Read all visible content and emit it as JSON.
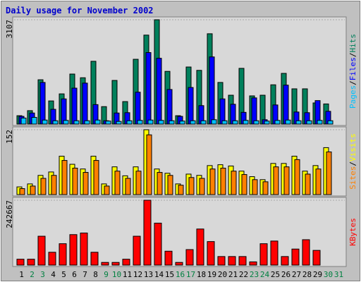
{
  "chart_data": [
    {
      "type": "bar",
      "title": "Daily usage for November 2002",
      "series": [
        {
          "name": "Hits",
          "color": "#00805c",
          "values": [
            250,
            400,
            1320,
            690,
            900,
            1490,
            1380,
            1870,
            520,
            1300,
            670,
            1930,
            2650,
            3107,
            1570,
            250,
            1700,
            1600,
            2690,
            1240,
            860,
            1660,
            840,
            860,
            1170,
            1510,
            1050,
            1050,
            630,
            600,
            0
          ]
        },
        {
          "name": "Files",
          "color": "#0000ff",
          "values": [
            230,
            330,
            1240,
            440,
            750,
            1070,
            1220,
            580,
            100,
            330,
            340,
            950,
            2130,
            1960,
            1030,
            230,
            1090,
            550,
            2000,
            750,
            590,
            350,
            780,
            130,
            570,
            1160,
            360,
            340,
            700,
            380,
            0
          ]
        },
        {
          "name": "Pages",
          "color": "#00c0ff",
          "values": [
            180,
            200,
            120,
            100,
            110,
            100,
            100,
            120,
            90,
            80,
            100,
            110,
            120,
            110,
            100,
            90,
            100,
            100,
            130,
            100,
            100,
            110,
            100,
            90,
            110,
            120,
            100,
            100,
            110,
            100,
            0
          ]
        }
      ],
      "legend_separator": "/",
      "ylim": [
        0,
        3107
      ],
      "yticks": [
        3107
      ]
    },
    {
      "type": "bar",
      "series": [
        {
          "name": "Visits",
          "color": "#ffff00",
          "values": [
            18,
            25,
            45,
            53,
            90,
            71,
            60,
            90,
            25,
            65,
            44,
            65,
            152,
            60,
            50,
            25,
            48,
            45,
            68,
            70,
            67,
            55,
            42,
            35,
            73,
            73,
            90,
            55,
            68,
            110,
            0
          ]
        },
        {
          "name": "Sites",
          "color": "#ff8000",
          "values": [
            14,
            20,
            38,
            45,
            80,
            62,
            52,
            80,
            20,
            55,
            38,
            55,
            140,
            52,
            45,
            22,
            40,
            38,
            60,
            62,
            55,
            47,
            35,
            30,
            65,
            65,
            82,
            48,
            60,
            100,
            0
          ]
        }
      ],
      "legend_separator": "/",
      "ylim": [
        0,
        152
      ],
      "yticks": [
        152
      ]
    },
    {
      "type": "bar",
      "series": [
        {
          "name": "KBytes",
          "color": "#ff0000",
          "values": [
            22000,
            22000,
            108000,
            48000,
            80000,
            114000,
            120000,
            48000,
            10000,
            10000,
            22000,
            108000,
            242667,
            157000,
            52000,
            10000,
            58000,
            135000,
            88000,
            32000,
            32000,
            32000,
            12000,
            80000,
            90000,
            32000,
            60000,
            95000,
            55000,
            0,
            0
          ]
        }
      ],
      "ylim": [
        0,
        242667
      ],
      "yticks": [
        242667
      ],
      "categories": [
        "1",
        "2",
        "3",
        "4",
        "5",
        "6",
        "7",
        "8",
        "9",
        "10",
        "11",
        "12",
        "13",
        "14",
        "15",
        "16",
        "17",
        "18",
        "19",
        "20",
        "21",
        "22",
        "23",
        "24",
        "25",
        "26",
        "27",
        "28",
        "29",
        "30",
        "31"
      ],
      "category_colors": [
        "#000000",
        "#008040",
        "#008040",
        "#000000",
        "#000000",
        "#000000",
        "#000000",
        "#000000",
        "#008040",
        "#008040",
        "#000000",
        "#000000",
        "#000000",
        "#000000",
        "#000000",
        "#008040",
        "#008040",
        "#000000",
        "#000000",
        "#000000",
        "#000000",
        "#000000",
        "#008040",
        "#008040",
        "#000000",
        "#000000",
        "#000000",
        "#000000",
        "#000000",
        "#008040",
        "#008040"
      ]
    }
  ]
}
